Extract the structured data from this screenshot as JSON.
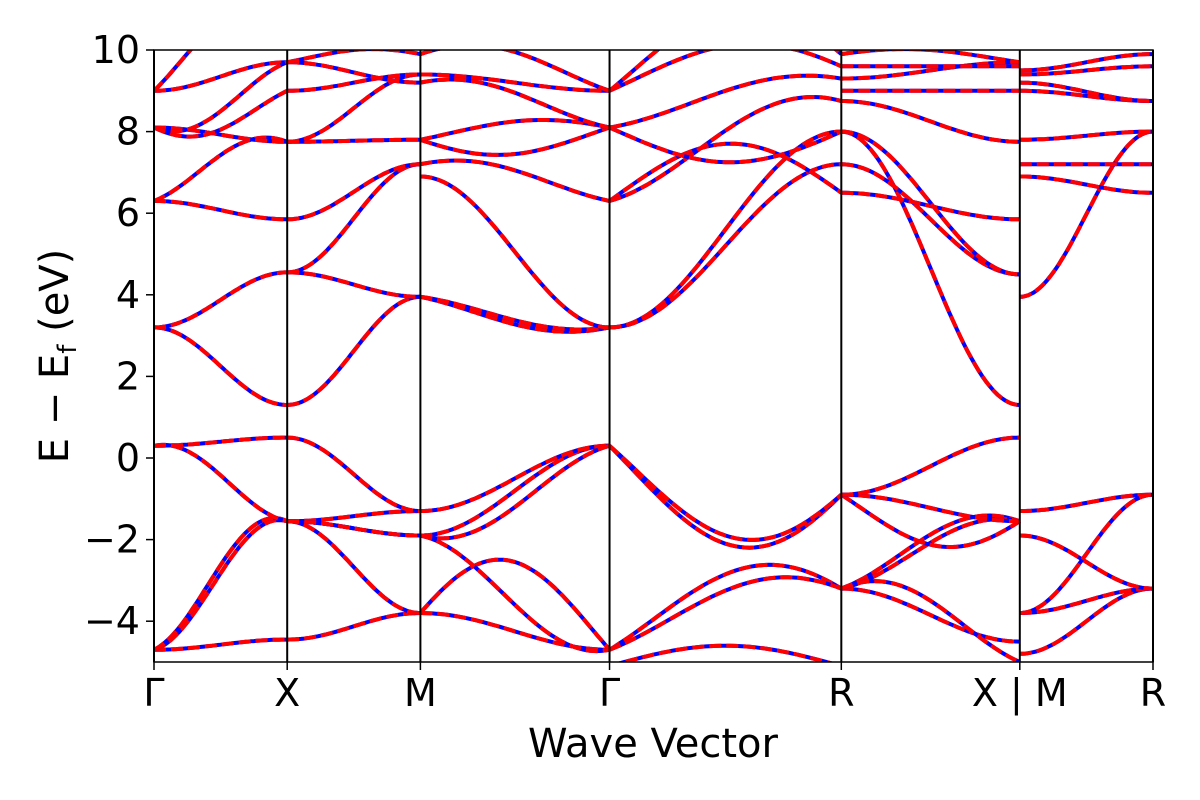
{
  "chart_data": {
    "type": "line",
    "title": "",
    "xlabel": "Wave Vector",
    "ylabel": "E − E",
    "ylabel_sub": "f",
    "ylabel_unit": " (eV)",
    "ylim": [
      -5,
      10
    ],
    "yticks": [
      -4,
      -2,
      0,
      2,
      4,
      6,
      8,
      10
    ],
    "ytick_labels": [
      "−4",
      "−2",
      "0",
      "2",
      "4",
      "6",
      "8",
      "10"
    ],
    "xlim": [
      0,
      7.5
    ],
    "kpoint_ticks": [
      {
        "x": 0.0,
        "label": "Γ"
      },
      {
        "x": 1.0,
        "label": "X"
      },
      {
        "x": 2.0,
        "label": "M"
      },
      {
        "x": 3.42,
        "label": "Γ"
      },
      {
        "x": 5.16,
        "label": "R"
      },
      {
        "x": 6.5,
        "label": "X | M"
      },
      {
        "x": 7.5,
        "label": "R"
      }
    ],
    "grid": false,
    "legend": "none",
    "series_styles": [
      {
        "color": "#0000ff",
        "style": "solid"
      },
      {
        "color": "#ff0000",
        "style": "dashed"
      }
    ],
    "segments": [
      {
        "x0": 0.0,
        "x1": 1.0,
        "bands": [
          {
            "type": "cos",
            "a": -4.7,
            "b": -4.45
          },
          {
            "type": "bump",
            "a": -4.7,
            "b": -1.55,
            "h": 0.3
          },
          {
            "type": "bump",
            "a": -4.7,
            "b": -1.55,
            "h": 0.5
          },
          {
            "type": "cos",
            "a": 0.3,
            "b": 0.5
          },
          {
            "type": "bump",
            "a": 0.3,
            "b": -1.55,
            "h": 0.2
          },
          {
            "type": "cos",
            "a": 3.2,
            "b": 1.3
          },
          {
            "type": "cos",
            "a": 3.2,
            "b": 4.55
          },
          {
            "type": "cos",
            "a": 6.3,
            "b": 5.85
          },
          {
            "type": "bump",
            "a": 6.3,
            "b": 7.75,
            "h": 0.4
          },
          {
            "type": "cos",
            "a": 8.1,
            "b": 7.75
          },
          {
            "type": "bump",
            "a": 8.1,
            "b": 9.0,
            "h": -0.5
          },
          {
            "type": "cos",
            "a": 9.0,
            "b": 9.7
          },
          {
            "type": "bump",
            "a": 8.1,
            "b": 9.7,
            "h": -0.4
          },
          {
            "type": "bump",
            "a": 9.0,
            "b": 10.4,
            "h": 1.0
          }
        ]
      },
      {
        "x0": 1.0,
        "x1": 2.0,
        "bands": [
          {
            "type": "cos",
            "a": -4.45,
            "b": -3.8
          },
          {
            "type": "cos",
            "a": -1.55,
            "b": -3.8
          },
          {
            "type": "cos",
            "a": -1.55,
            "b": -1.9
          },
          {
            "type": "bump",
            "a": -1.55,
            "b": -1.3,
            "h": 0.0
          },
          {
            "type": "bump",
            "a": -1.55,
            "b": -1.9,
            "h": 0.0
          },
          {
            "type": "cos",
            "a": 0.5,
            "b": -1.3
          },
          {
            "type": "cos",
            "a": 1.3,
            "b": 3.95
          },
          {
            "type": "cos",
            "a": 4.55,
            "b": 3.95
          },
          {
            "type": "cos",
            "a": 4.55,
            "b": 7.2
          },
          {
            "type": "cos",
            "a": 5.85,
            "b": 7.2
          },
          {
            "type": "cos",
            "a": 7.75,
            "b": 7.8
          },
          {
            "type": "cos",
            "a": 7.75,
            "b": 9.4
          },
          {
            "type": "cos",
            "a": 9.0,
            "b": 9.4
          },
          {
            "type": "cos",
            "a": 9.7,
            "b": 9.2
          },
          {
            "type": "bump",
            "a": 9.7,
            "b": 9.9,
            "h": 0.2
          }
        ]
      },
      {
        "x0": 2.0,
        "x1": 3.42,
        "bands": [
          {
            "type": "cos",
            "a": -3.8,
            "b": -4.7
          },
          {
            "type": "bump",
            "a": -3.8,
            "b": -4.7,
            "h": 1.7
          },
          {
            "type": "bump",
            "a": -1.9,
            "b": -4.7,
            "h": -0.3
          },
          {
            "type": "cos",
            "a": -1.9,
            "b": 0.3
          },
          {
            "type": "cos",
            "a": -1.3,
            "b": 0.3
          },
          {
            "type": "bump",
            "a": -1.9,
            "b": 0.3,
            "h": -0.4
          },
          {
            "type": "bump",
            "a": 3.95,
            "b": 3.2,
            "h": -0.3
          },
          {
            "type": "bump",
            "a": 3.95,
            "b": 3.2,
            "h": -0.2
          },
          {
            "type": "bump",
            "a": 7.2,
            "b": 6.3,
            "h": 0.3
          },
          {
            "type": "cos",
            "a": 6.9,
            "b": 3.2
          },
          {
            "type": "bump",
            "a": 7.8,
            "b": 8.1,
            "h": -0.5
          },
          {
            "type": "bump",
            "a": 7.8,
            "b": 8.1,
            "h": 0.3
          },
          {
            "type": "bump",
            "a": 9.4,
            "b": 9.0,
            "h": 0.0
          },
          {
            "type": "bump",
            "a": 9.2,
            "b": 8.1,
            "h": 0.3
          },
          {
            "type": "bump",
            "a": 9.9,
            "b": 9.0,
            "h": 0.5
          }
        ]
      },
      {
        "x0": 3.42,
        "x1": 5.16,
        "bands": [
          {
            "type": "bump",
            "a": -4.7,
            "b": -3.2,
            "h": 1.1
          },
          {
            "type": "bump",
            "a": -4.7,
            "b": -3.2,
            "h": 0.7
          },
          {
            "type": "bump",
            "a": -5.1,
            "b": -5.1,
            "h": 0.5
          },
          {
            "type": "bump",
            "a": 0.3,
            "b": -0.9,
            "h": -1.8
          },
          {
            "type": "bump",
            "a": 0.3,
            "b": -0.9,
            "h": -1.6
          },
          {
            "type": "cos",
            "a": 3.2,
            "b": 8.0
          },
          {
            "type": "cos",
            "a": 3.2,
            "b": 7.2
          },
          {
            "type": "bump",
            "a": 6.3,
            "b": 6.5,
            "h": 1.3
          },
          {
            "type": "bump",
            "a": 6.3,
            "b": 8.75,
            "h": 0.5
          },
          {
            "type": "bump",
            "a": 8.1,
            "b": 8.0,
            "h": -0.8
          },
          {
            "type": "bump",
            "a": 8.1,
            "b": 9.3,
            "h": 0.3
          },
          {
            "type": "bump",
            "a": 9.0,
            "b": 9.6,
            "h": 0.8
          },
          {
            "type": "bump",
            "a": 9.0,
            "b": 9.9,
            "h": 1.5
          }
        ]
      },
      {
        "x0": 5.16,
        "x1": 6.5,
        "bands": [
          {
            "type": "cos",
            "a": -3.2,
            "b": -4.5
          },
          {
            "type": "bump",
            "a": -3.2,
            "b": -1.55,
            "h": 0.5
          },
          {
            "type": "bump",
            "a": -3.2,
            "b": -1.55,
            "h": 0.3
          },
          {
            "type": "bump",
            "a": -3.2,
            "b": -5.0,
            "h": 0.6
          },
          {
            "type": "bump",
            "a": -0.9,
            "b": -1.55,
            "h": -0.9
          },
          {
            "type": "cos",
            "a": -0.9,
            "b": -1.55
          },
          {
            "type": "cos",
            "a": -0.9,
            "b": 0.5
          },
          {
            "type": "cos",
            "a": 8.0,
            "b": 1.3
          },
          {
            "type": "cos",
            "a": 7.2,
            "b": 4.5
          },
          {
            "type": "cos",
            "a": 6.5,
            "b": 5.85
          },
          {
            "type": "cos",
            "a": 8.0,
            "b": 4.5
          },
          {
            "type": "cos",
            "a": 8.75,
            "b": 7.75
          },
          {
            "type": "cos",
            "a": 9.0,
            "b": 9.0
          },
          {
            "type": "cos",
            "a": 9.3,
            "b": 9.7
          },
          {
            "type": "cos",
            "a": 9.6,
            "b": 9.6
          },
          {
            "type": "bump",
            "a": 9.9,
            "b": 9.7,
            "h": 0.2
          }
        ]
      },
      {
        "x0": 6.5,
        "x1": 7.5,
        "bands": [
          {
            "type": "cos",
            "a": -4.8,
            "b": -3.2
          },
          {
            "type": "cos",
            "a": -3.8,
            "b": -3.2
          },
          {
            "type": "cos",
            "a": -1.9,
            "b": -3.2
          },
          {
            "type": "cos",
            "a": -1.3,
            "b": -0.9
          },
          {
            "type": "cos",
            "a": -3.8,
            "b": -0.9
          },
          {
            "type": "cos",
            "a": 3.95,
            "b": 8.0
          },
          {
            "type": "cos",
            "a": 6.9,
            "b": 6.5
          },
          {
            "type": "cos",
            "a": 7.2,
            "b": 7.2
          },
          {
            "type": "cos",
            "a": 7.8,
            "b": 8.0
          },
          {
            "type": "cos",
            "a": 9.0,
            "b": 8.75
          },
          {
            "type": "cos",
            "a": 9.2,
            "b": 8.75
          },
          {
            "type": "cos",
            "a": 9.4,
            "b": 9.6
          },
          {
            "type": "cos",
            "a": 9.5,
            "b": 9.9
          }
        ]
      }
    ]
  }
}
